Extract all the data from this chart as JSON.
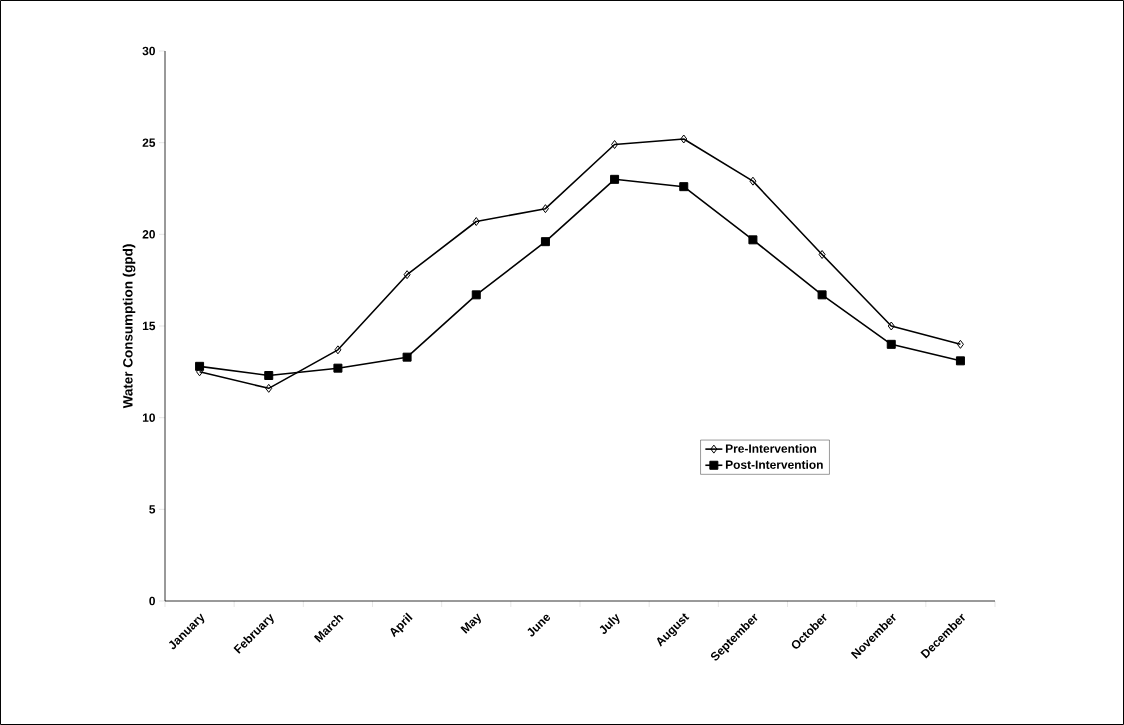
{
  "chart_data": {
    "type": "line",
    "ylabel": "Water Consumption (gpd)",
    "categories": [
      "January",
      "February",
      "March",
      "April",
      "May",
      "June",
      "July",
      "August",
      "September",
      "October",
      "November",
      "December"
    ],
    "series": [
      {
        "name": "Pre-Intervention",
        "color": "#000000",
        "marker": "diamond",
        "values": [
          12.5,
          11.6,
          13.7,
          17.8,
          20.7,
          21.4,
          24.9,
          25.2,
          22.9,
          18.9,
          15.0,
          14.0
        ]
      },
      {
        "name": "Post-Intervention",
        "color": "#000000",
        "marker": "square",
        "values": [
          12.8,
          12.3,
          12.7,
          13.3,
          16.7,
          19.6,
          23.0,
          22.6,
          19.7,
          16.7,
          14.0,
          13.1
        ]
      }
    ],
    "ylim": [
      0,
      30
    ],
    "yticks": [
      0,
      5,
      10,
      15,
      20,
      25,
      30
    ],
    "grid": false,
    "legend": "right",
    "line_style": "solid"
  }
}
